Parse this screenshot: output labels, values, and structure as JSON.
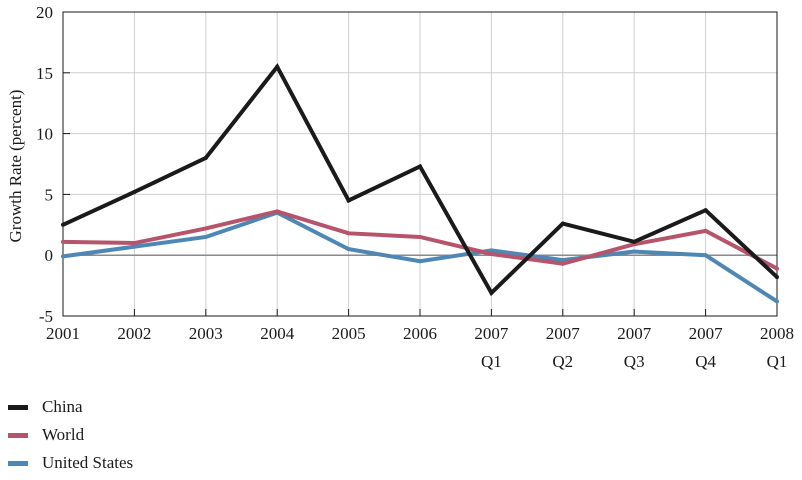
{
  "chart_data": {
    "type": "line",
    "title": "",
    "xlabel": "",
    "ylabel": "Growth Rate (percent)",
    "ylim": [
      -5,
      20
    ],
    "yticks": [
      -5,
      0,
      5,
      10,
      15,
      20
    ],
    "grid": true,
    "legend_position": "bottom-left",
    "categories": [
      {
        "top": "2001",
        "bottom": ""
      },
      {
        "top": "2002",
        "bottom": ""
      },
      {
        "top": "2003",
        "bottom": ""
      },
      {
        "top": "2004",
        "bottom": ""
      },
      {
        "top": "2005",
        "bottom": ""
      },
      {
        "top": "2006",
        "bottom": ""
      },
      {
        "top": "2007",
        "bottom": "Q1"
      },
      {
        "top": "2007",
        "bottom": "Q2"
      },
      {
        "top": "2007",
        "bottom": "Q3"
      },
      {
        "top": "2007",
        "bottom": "Q4"
      },
      {
        "top": "2008",
        "bottom": "Q1"
      }
    ],
    "series": [
      {
        "name": "China",
        "color": "#1a1a1a",
        "values": [
          2.5,
          5.2,
          8.0,
          15.5,
          4.5,
          7.3,
          -3.1,
          2.6,
          1.1,
          3.7,
          -1.8
        ]
      },
      {
        "name": "World",
        "color": "#b5546a",
        "values": [
          1.1,
          1.0,
          2.2,
          3.6,
          1.8,
          1.5,
          0.1,
          -0.7,
          0.9,
          2.0,
          -1.1
        ]
      },
      {
        "name": "United States",
        "color": "#4e86b4",
        "values": [
          -0.1,
          0.7,
          1.5,
          3.5,
          0.5,
          -0.5,
          0.4,
          -0.4,
          0.3,
          0.0,
          -3.8
        ]
      }
    ]
  }
}
